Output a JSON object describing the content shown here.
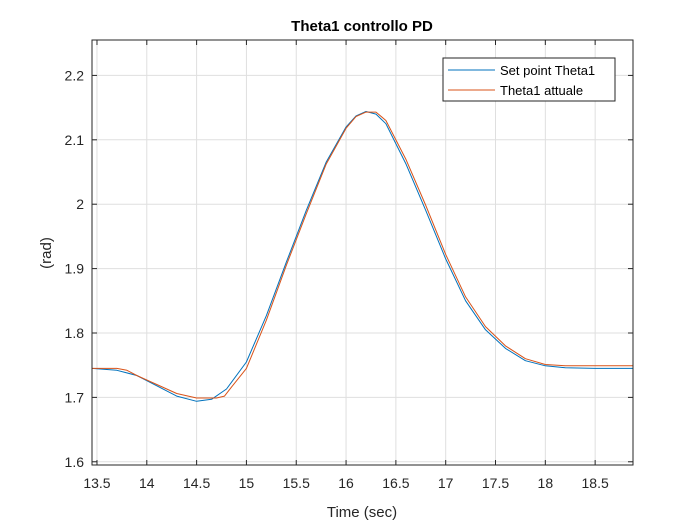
{
  "chart_data": {
    "type": "line",
    "title": "Theta1 controllo PD",
    "xlabel": "Time (sec)",
    "ylabel": "(rad)",
    "xlim": [
      13.45,
      18.88
    ],
    "ylim": [
      1.595,
      2.255
    ],
    "xticks": [
      13.5,
      14,
      14.5,
      15,
      15.5,
      16,
      16.5,
      17,
      17.5,
      18,
      18.5
    ],
    "xtick_labels": [
      "13.5",
      "14",
      "14.5",
      "15",
      "15.5",
      "16",
      "16.5",
      "17",
      "17.5",
      "18",
      "18.5"
    ],
    "yticks": [
      1.6,
      1.7,
      1.8,
      1.9,
      2.0,
      2.1,
      2.2
    ],
    "ytick_labels": [
      "1.6",
      "1.7",
      "1.8",
      "1.9",
      "2",
      "2.1",
      "2.2"
    ],
    "grid": true,
    "legend_position": "top-right",
    "series": [
      {
        "name": "Set point Theta1",
        "color": "#0072BD",
        "x": [
          13.45,
          13.7,
          13.9,
          14.1,
          14.3,
          14.5,
          14.65,
          14.8,
          15.0,
          15.2,
          15.4,
          15.6,
          15.8,
          16.0,
          16.1,
          16.2,
          16.3,
          16.4,
          16.6,
          16.8,
          17.0,
          17.2,
          17.4,
          17.6,
          17.8,
          18.0,
          18.2,
          18.5,
          18.88
        ],
        "y": [
          1.745,
          1.742,
          1.734,
          1.718,
          1.702,
          1.694,
          1.697,
          1.713,
          1.755,
          1.827,
          1.91,
          1.99,
          2.065,
          2.12,
          2.137,
          2.144,
          2.14,
          2.125,
          2.063,
          1.99,
          1.915,
          1.85,
          1.805,
          1.776,
          1.757,
          1.749,
          1.746,
          1.745,
          1.745
        ]
      },
      {
        "name": "Theta1 attuale",
        "color": "#D95319",
        "x": [
          13.45,
          13.7,
          13.8,
          13.9,
          14.1,
          14.3,
          14.5,
          14.7,
          14.78,
          14.85,
          15.0,
          15.2,
          15.4,
          15.6,
          15.8,
          16.0,
          16.1,
          16.2,
          16.3,
          16.4,
          16.6,
          16.8,
          17.0,
          17.2,
          17.4,
          17.6,
          17.8,
          18.0,
          18.2,
          18.5,
          18.88
        ],
        "y": [
          1.745,
          1.745,
          1.742,
          1.734,
          1.72,
          1.706,
          1.699,
          1.699,
          1.702,
          1.716,
          1.745,
          1.82,
          1.905,
          1.985,
          2.062,
          2.118,
          2.136,
          2.143,
          2.143,
          2.13,
          2.07,
          1.998,
          1.922,
          1.856,
          1.81,
          1.78,
          1.76,
          1.751,
          1.749,
          1.749,
          1.749
        ]
      }
    ]
  }
}
